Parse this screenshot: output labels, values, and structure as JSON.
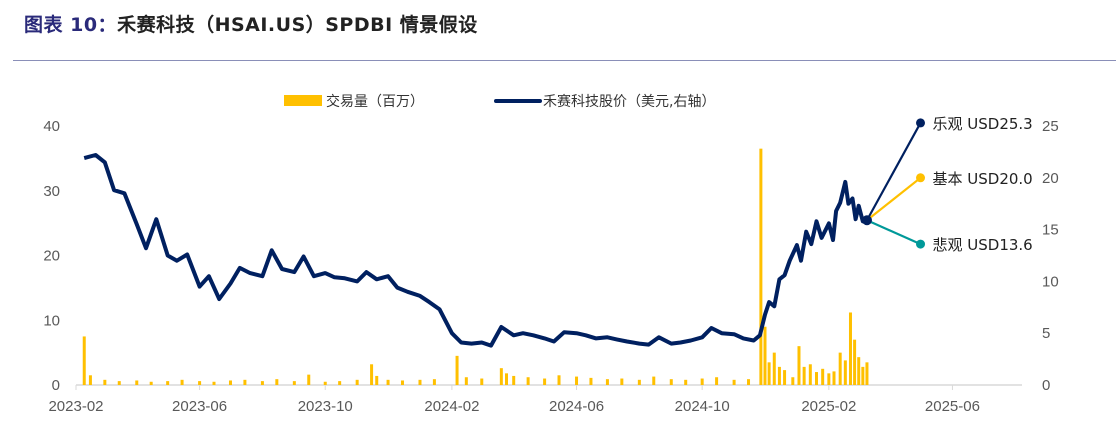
{
  "title_prefix": "图表 10：",
  "title_main": "禾赛科技（HSAI.US）SPDBI 情景假设",
  "chart_data": {
    "type": "bar+line",
    "title": "禾赛科技（HSAI.US）SPDBI 情景假设",
    "x_ticks": [
      "2023-02",
      "2023-06",
      "2023-10",
      "2024-02",
      "2024-06",
      "2024-10",
      "2025-02",
      "2025-06"
    ],
    "y_left": {
      "ticks": [
        0,
        10,
        20,
        30,
        40
      ],
      "range": [
        0,
        40
      ]
    },
    "y_right": {
      "ticks": [
        0,
        5,
        10,
        15,
        20,
        25
      ],
      "range": [
        0,
        25
      ]
    },
    "legend": {
      "placement": "top",
      "items": [
        {
          "name": "交易量（百万）",
          "color": "#FFC000"
        },
        {
          "name": "禾赛科技股价（美元,右轴）",
          "color": "#002060"
        }
      ]
    },
    "series": [
      {
        "name": "交易量（百万）",
        "axis": "left",
        "type": "bar",
        "color": "#FFC000",
        "points": [
          [
            "2023-02-09",
            7.5
          ],
          [
            "2023-02-15",
            1.5
          ],
          [
            "2023-03-01",
            0.8
          ],
          [
            "2023-03-15",
            0.6
          ],
          [
            "2023-04-01",
            0.7
          ],
          [
            "2023-04-15",
            0.5
          ],
          [
            "2023-05-01",
            0.6
          ],
          [
            "2023-05-15",
            0.8
          ],
          [
            "2023-06-01",
            0.6
          ],
          [
            "2023-06-15",
            0.5
          ],
          [
            "2023-07-01",
            0.7
          ],
          [
            "2023-07-15",
            0.8
          ],
          [
            "2023-08-01",
            0.6
          ],
          [
            "2023-08-15",
            0.9
          ],
          [
            "2023-09-01",
            0.6
          ],
          [
            "2023-09-15",
            1.6
          ],
          [
            "2023-10-01",
            0.5
          ],
          [
            "2023-10-15",
            0.6
          ],
          [
            "2023-11-01",
            0.8
          ],
          [
            "2023-11-15",
            3.2
          ],
          [
            "2023-11-20",
            1.4
          ],
          [
            "2023-12-01",
            0.8
          ],
          [
            "2023-12-15",
            0.7
          ],
          [
            "2024-01-01",
            0.8
          ],
          [
            "2024-01-15",
            0.9
          ],
          [
            "2024-02-06",
            4.5
          ],
          [
            "2024-02-15",
            1.2
          ],
          [
            "2024-03-01",
            1.0
          ],
          [
            "2024-03-20",
            2.6
          ],
          [
            "2024-03-25",
            1.8
          ],
          [
            "2024-04-01",
            1.4
          ],
          [
            "2024-04-15",
            1.2
          ],
          [
            "2024-05-01",
            1.0
          ],
          [
            "2024-05-15",
            1.5
          ],
          [
            "2024-06-01",
            1.3
          ],
          [
            "2024-06-15",
            1.1
          ],
          [
            "2024-07-01",
            0.9
          ],
          [
            "2024-07-15",
            1.0
          ],
          [
            "2024-08-01",
            0.8
          ],
          [
            "2024-08-15",
            1.3
          ],
          [
            "2024-09-01",
            0.9
          ],
          [
            "2024-09-15",
            0.8
          ],
          [
            "2024-10-01",
            1.0
          ],
          [
            "2024-10-15",
            1.2
          ],
          [
            "2024-11-01",
            0.8
          ],
          [
            "2024-11-15",
            0.9
          ],
          [
            "2024-11-27",
            36.5
          ],
          [
            "2024-12-01",
            9.0
          ],
          [
            "2024-12-05",
            3.5
          ],
          [
            "2024-12-10",
            5.0
          ],
          [
            "2024-12-15",
            2.8
          ],
          [
            "2024-12-20",
            2.3
          ],
          [
            "2024-12-28",
            1.2
          ],
          [
            "2025-01-03",
            6.0
          ],
          [
            "2025-01-08",
            2.8
          ],
          [
            "2025-01-14",
            3.2
          ],
          [
            "2025-01-20",
            2.0
          ],
          [
            "2025-01-26",
            2.5
          ],
          [
            "2025-02-01",
            1.8
          ],
          [
            "2025-02-06",
            2.1
          ],
          [
            "2025-02-12",
            5.0
          ],
          [
            "2025-02-17",
            3.8
          ],
          [
            "2025-02-22",
            11.2
          ],
          [
            "2025-02-26",
            7.0
          ],
          [
            "2025-03-02",
            4.3
          ],
          [
            "2025-03-06",
            2.8
          ],
          [
            "2025-03-10",
            3.5
          ]
        ]
      },
      {
        "name": "禾赛科技股价（美元,右轴）",
        "axis": "right",
        "type": "line",
        "color": "#002060",
        "points": [
          [
            "2023-02-09",
            21.9
          ],
          [
            "2023-02-20",
            22.2
          ],
          [
            "2023-03-01",
            21.5
          ],
          [
            "2023-03-10",
            18.8
          ],
          [
            "2023-03-20",
            18.5
          ],
          [
            "2023-04-01",
            15.5
          ],
          [
            "2023-04-10",
            13.2
          ],
          [
            "2023-04-20",
            16.0
          ],
          [
            "2023-05-01",
            12.5
          ],
          [
            "2023-05-10",
            12.0
          ],
          [
            "2023-05-20",
            12.6
          ],
          [
            "2023-06-01",
            9.5
          ],
          [
            "2023-06-10",
            10.5
          ],
          [
            "2023-06-20",
            8.3
          ],
          [
            "2023-07-01",
            9.8
          ],
          [
            "2023-07-10",
            11.3
          ],
          [
            "2023-07-20",
            10.8
          ],
          [
            "2023-08-01",
            10.5
          ],
          [
            "2023-08-10",
            13.0
          ],
          [
            "2023-08-20",
            11.2
          ],
          [
            "2023-09-01",
            10.9
          ],
          [
            "2023-09-10",
            12.4
          ],
          [
            "2023-09-20",
            10.5
          ],
          [
            "2023-10-01",
            10.8
          ],
          [
            "2023-10-10",
            10.4
          ],
          [
            "2023-10-20",
            10.3
          ],
          [
            "2023-11-01",
            10.0
          ],
          [
            "2023-11-10",
            10.9
          ],
          [
            "2023-11-20",
            10.2
          ],
          [
            "2023-12-01",
            10.5
          ],
          [
            "2023-12-10",
            9.4
          ],
          [
            "2023-12-20",
            9.0
          ],
          [
            "2024-01-01",
            8.6
          ],
          [
            "2024-01-10",
            8.0
          ],
          [
            "2024-01-20",
            7.3
          ],
          [
            "2024-02-01",
            5.0
          ],
          [
            "2024-02-10",
            4.1
          ],
          [
            "2024-02-20",
            4.0
          ],
          [
            "2024-03-01",
            4.1
          ],
          [
            "2024-03-10",
            3.8
          ],
          [
            "2024-03-20",
            5.6
          ],
          [
            "2024-04-01",
            4.8
          ],
          [
            "2024-04-10",
            5.0
          ],
          [
            "2024-04-20",
            4.8
          ],
          [
            "2024-05-01",
            4.5
          ],
          [
            "2024-05-10",
            4.2
          ],
          [
            "2024-05-20",
            5.1
          ],
          [
            "2024-06-01",
            5.0
          ],
          [
            "2024-06-10",
            4.8
          ],
          [
            "2024-06-20",
            4.5
          ],
          [
            "2024-07-01",
            4.6
          ],
          [
            "2024-07-10",
            4.4
          ],
          [
            "2024-07-20",
            4.2
          ],
          [
            "2024-08-01",
            4.0
          ],
          [
            "2024-08-10",
            3.9
          ],
          [
            "2024-08-20",
            4.6
          ],
          [
            "2024-09-01",
            4.0
          ],
          [
            "2024-09-10",
            4.1
          ],
          [
            "2024-09-20",
            4.3
          ],
          [
            "2024-10-01",
            4.6
          ],
          [
            "2024-10-10",
            5.5
          ],
          [
            "2024-10-20",
            5.0
          ],
          [
            "2024-11-01",
            4.9
          ],
          [
            "2024-11-10",
            4.5
          ],
          [
            "2024-11-20",
            4.3
          ],
          [
            "2024-11-26",
            4.8
          ],
          [
            "2024-12-01",
            6.8
          ],
          [
            "2024-12-05",
            8.0
          ],
          [
            "2024-12-10",
            7.6
          ],
          [
            "2024-12-15",
            10.2
          ],
          [
            "2024-12-20",
            10.6
          ],
          [
            "2024-12-25",
            12.0
          ],
          [
            "2025-01-01",
            13.5
          ],
          [
            "2025-01-05",
            12.0
          ],
          [
            "2025-01-10",
            14.8
          ],
          [
            "2025-01-15",
            13.6
          ],
          [
            "2025-01-20",
            15.8
          ],
          [
            "2025-01-25",
            14.2
          ],
          [
            "2025-02-01",
            15.6
          ],
          [
            "2025-02-05",
            14.0
          ],
          [
            "2025-02-08",
            16.8
          ],
          [
            "2025-02-12",
            17.6
          ],
          [
            "2025-02-17",
            19.6
          ],
          [
            "2025-02-20",
            17.5
          ],
          [
            "2025-02-24",
            18.0
          ],
          [
            "2025-02-27",
            16.0
          ],
          [
            "2025-03-02",
            17.3
          ],
          [
            "2025-03-06",
            15.8
          ],
          [
            "2025-03-10",
            15.9
          ]
        ]
      }
    ],
    "scenarios": {
      "start": [
        "2025-03-10",
        15.9
      ],
      "end_date": "2025-05-01",
      "items": [
        {
          "label": "乐观 USD25.3",
          "value": 25.3,
          "color": "#002060"
        },
        {
          "label": "基本 USD20.0",
          "value": 20.0,
          "color": "#FFC000"
        },
        {
          "label": "悲观 USD13.6",
          "value": 13.6,
          "color": "#009999"
        }
      ]
    }
  }
}
